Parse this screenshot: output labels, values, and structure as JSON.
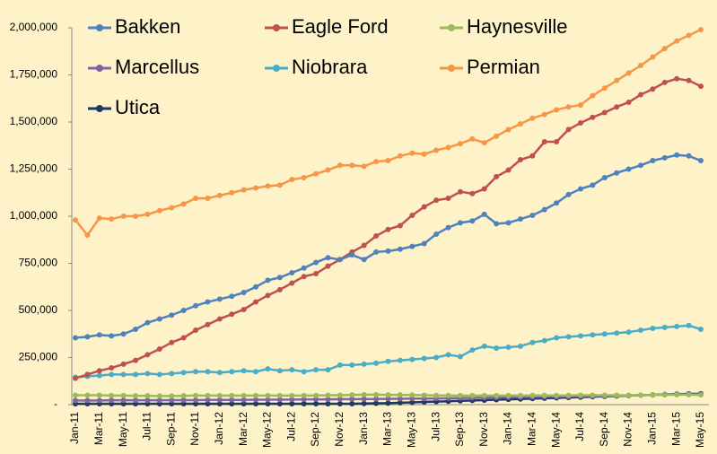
{
  "chart_data": {
    "type": "line",
    "categories": [
      "Jan-11",
      null,
      "Mar-11",
      null,
      "May-11",
      null,
      "Jul-11",
      null,
      "Sep-11",
      null,
      "Nov-11",
      null,
      "Jan-12",
      null,
      "Mar-12",
      null,
      "May-12",
      null,
      "Jul-12",
      null,
      "Sep-12",
      null,
      "Nov-12",
      null,
      "Jan-13",
      null,
      "Mar-13",
      null,
      "May-13",
      null,
      "Jul-13",
      null,
      "Sep-13",
      null,
      "Nov-13",
      null,
      "Jan-14",
      null,
      "Mar-14",
      null,
      "May-14",
      null,
      "Jul-14",
      null,
      "Sep-14",
      null,
      "Nov-14",
      null,
      "Jan-15",
      null,
      "Mar-15",
      null,
      "May-15"
    ],
    "ylim": [
      0,
      2000000
    ],
    "yticks": [
      {
        "value": 0,
        "label": "-"
      },
      {
        "value": 250000,
        "label": "250,000"
      },
      {
        "value": 500000,
        "label": "500,000"
      },
      {
        "value": 750000,
        "label": "750,000"
      },
      {
        "value": 1000000,
        "label": "1,000,000"
      },
      {
        "value": 1250000,
        "label": "1,250,000"
      },
      {
        "value": 1500000,
        "label": "1,500,000"
      },
      {
        "value": 1750000,
        "label": "1,750,000"
      },
      {
        "value": 2000000,
        "label": "2,000,000"
      }
    ],
    "grid": false,
    "series": [
      {
        "name": "Bakken",
        "color": "#4f81bd",
        "values": [
          355000,
          360000,
          370000,
          365000,
          375000,
          400000,
          435000,
          455000,
          475000,
          500000,
          525000,
          545000,
          560000,
          575000,
          595000,
          625000,
          660000,
          675000,
          700000,
          725000,
          755000,
          780000,
          770000,
          795000,
          770000,
          810000,
          815000,
          825000,
          840000,
          855000,
          905000,
          940000,
          965000,
          975000,
          1010000,
          960000,
          965000,
          985000,
          1005000,
          1035000,
          1070000,
          1115000,
          1145000,
          1165000,
          1205000,
          1230000,
          1250000,
          1270000,
          1295000,
          1310000,
          1325000,
          1320000,
          1295000
        ]
      },
      {
        "name": "Eagle Ford",
        "color": "#c0504d",
        "values": [
          140000,
          160000,
          180000,
          195000,
          215000,
          235000,
          265000,
          295000,
          330000,
          355000,
          395000,
          425000,
          455000,
          480000,
          505000,
          545000,
          580000,
          610000,
          645000,
          680000,
          695000,
          735000,
          770000,
          810000,
          845000,
          895000,
          930000,
          950000,
          1005000,
          1050000,
          1085000,
          1095000,
          1130000,
          1120000,
          1145000,
          1210000,
          1245000,
          1300000,
          1320000,
          1395000,
          1395000,
          1460000,
          1495000,
          1525000,
          1550000,
          1580000,
          1605000,
          1645000,
          1675000,
          1710000,
          1730000,
          1720000,
          1690000
        ]
      },
      {
        "name": "Haynesville",
        "color": "#9bbb59",
        "values": [
          50000,
          50000,
          50000,
          48000,
          48000,
          47000,
          47000,
          46000,
          46000,
          47000,
          48000,
          48000,
          48000,
          48000,
          48000,
          48000,
          48000,
          48000,
          48000,
          48000,
          49000,
          50000,
          50000,
          52000,
          53000,
          53000,
          52000,
          52000,
          51000,
          50000,
          49000,
          49000,
          48000,
          48000,
          48000,
          48000,
          48000,
          48000,
          49000,
          49000,
          49000,
          49000,
          50000,
          50000,
          50000,
          50000,
          50000,
          50000,
          51000,
          52000,
          53000,
          53000,
          52000
        ]
      },
      {
        "name": "Marcellus",
        "color": "#8064a2",
        "values": [
          22000,
          22000,
          22000,
          23000,
          23000,
          23000,
          23000,
          23000,
          24000,
          24000,
          24000,
          25000,
          25000,
          25000,
          25000,
          26000,
          26000,
          27000,
          27000,
          28000,
          28000,
          28000,
          29000,
          29000,
          30000,
          30000,
          31000,
          31000,
          32000,
          32000,
          33000,
          34000,
          35000,
          36000,
          37000,
          38000,
          39000,
          40000,
          41000,
          42000,
          43000,
          44000,
          45000,
          46000,
          47000,
          48000,
          49000,
          50000,
          52000,
          53000,
          54000,
          55000,
          55000
        ]
      },
      {
        "name": "Niobrara",
        "color": "#4bacc6",
        "values": [
          145000,
          150000,
          155000,
          160000,
          160000,
          160000,
          165000,
          160000,
          165000,
          170000,
          175000,
          175000,
          170000,
          175000,
          180000,
          175000,
          190000,
          180000,
          185000,
          175000,
          185000,
          185000,
          210000,
          210000,
          215000,
          220000,
          230000,
          235000,
          240000,
          245000,
          250000,
          265000,
          255000,
          290000,
          310000,
          300000,
          305000,
          310000,
          330000,
          340000,
          355000,
          360000,
          365000,
          370000,
          375000,
          380000,
          385000,
          395000,
          405000,
          410000,
          415000,
          420000,
          400000
        ]
      },
      {
        "name": "Permian",
        "color": "#f79646",
        "values": [
          980000,
          900000,
          990000,
          985000,
          1000000,
          1000000,
          1010000,
          1030000,
          1045000,
          1065000,
          1095000,
          1095000,
          1110000,
          1125000,
          1140000,
          1150000,
          1160000,
          1165000,
          1195000,
          1205000,
          1225000,
          1245000,
          1270000,
          1270000,
          1265000,
          1290000,
          1295000,
          1320000,
          1335000,
          1330000,
          1350000,
          1365000,
          1385000,
          1410000,
          1390000,
          1425000,
          1460000,
          1490000,
          1520000,
          1540000,
          1565000,
          1580000,
          1590000,
          1640000,
          1680000,
          1720000,
          1760000,
          1800000,
          1845000,
          1890000,
          1930000,
          1960000,
          1990000
        ]
      },
      {
        "name": "Utica",
        "color": "#1f3864",
        "values": [
          5000,
          5000,
          5000,
          5000,
          5000,
          5000,
          5000,
          5000,
          5000,
          5000,
          5000,
          5000,
          5000,
          5000,
          5000,
          5000,
          5000,
          5000,
          5000,
          5000,
          5000,
          5000,
          5000,
          5000,
          6000,
          7000,
          8000,
          10000,
          12000,
          14000,
          16000,
          18000,
          20000,
          22000,
          24000,
          26000,
          28000,
          30000,
          32000,
          34000,
          36000,
          38000,
          40000,
          42000,
          44000,
          46000,
          48000,
          50000,
          52000,
          54000,
          56000,
          57000,
          58000
        ]
      }
    ]
  }
}
